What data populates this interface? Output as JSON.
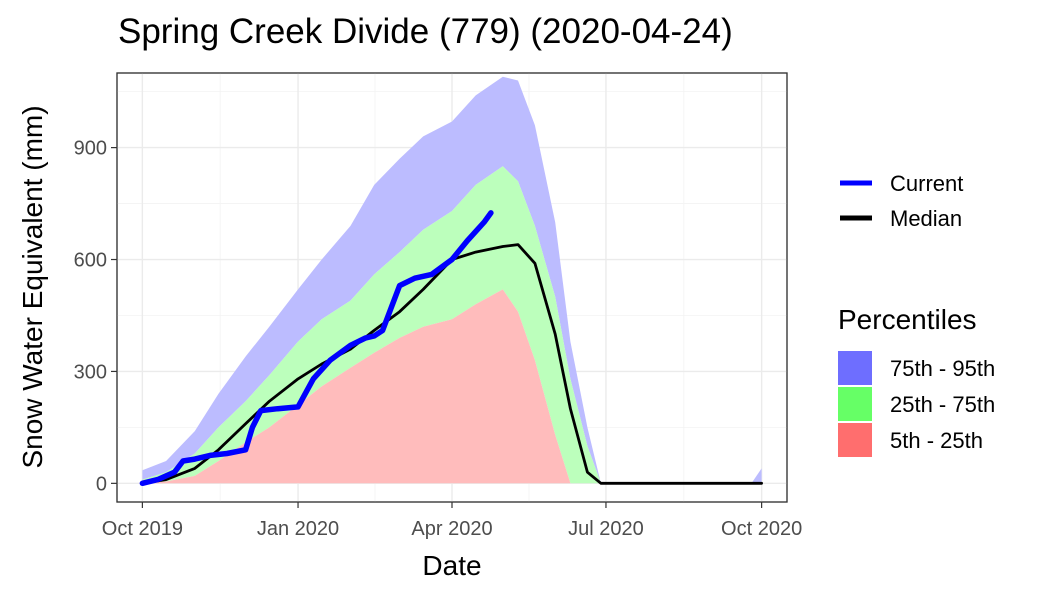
{
  "chart_data": {
    "type": "area",
    "title": "Spring Creek Divide (779) (2020-04-24)",
    "xlabel": "Date",
    "ylabel": "Snow Water Equivalent (mm)",
    "xlim": [
      "2019-09-16",
      "2020-10-16"
    ],
    "ylim": [
      -50,
      1100
    ],
    "x_ticks": [
      {
        "date": "2019-10-01",
        "label": "Oct 2019"
      },
      {
        "date": "2020-01-01",
        "label": "Jan 2020"
      },
      {
        "date": "2020-04-01",
        "label": "Apr 2020"
      },
      {
        "date": "2020-07-01",
        "label": "Jul 2020"
      },
      {
        "date": "2020-10-01",
        "label": "Oct 2020"
      }
    ],
    "y_ticks": [
      0,
      300,
      600,
      900
    ],
    "grid": true,
    "legend_position": "right",
    "legend": {
      "lines_title": "",
      "lines": [
        {
          "label": "Current",
          "color": "#0000ff"
        },
        {
          "label": "Median",
          "color": "#000000"
        }
      ],
      "bands_title": "Percentiles",
      "bands": [
        {
          "label": "75th - 95th",
          "color": "#6e6eff"
        },
        {
          "label": "25th - 75th",
          "color": "#66ff66"
        },
        {
          "label": "5th - 25th",
          "color": "#ff6e6e"
        }
      ]
    },
    "bands": {
      "p95_fill": "#bcbcff",
      "p75_fill": "#bcffbc",
      "p25_fill": "#ffbcbc",
      "dates": [
        "2019-10-01",
        "2019-10-15",
        "2019-11-01",
        "2019-11-15",
        "2019-12-01",
        "2019-12-15",
        "2020-01-01",
        "2020-01-15",
        "2020-02-01",
        "2020-02-15",
        "2020-03-01",
        "2020-03-15",
        "2020-04-01",
        "2020-04-15",
        "2020-05-01",
        "2020-05-10",
        "2020-05-20",
        "2020-06-01",
        "2020-06-10",
        "2020-06-20",
        "2020-06-28",
        "2020-07-15",
        "2020-09-25",
        "2020-10-01"
      ],
      "p95": [
        35,
        60,
        140,
        240,
        340,
        420,
        520,
        600,
        690,
        800,
        870,
        930,
        970,
        1040,
        1090,
        1080,
        960,
        700,
        380,
        150,
        0,
        0,
        0,
        40
      ],
      "p75": [
        10,
        30,
        80,
        150,
        220,
        290,
        380,
        440,
        490,
        560,
        620,
        680,
        730,
        800,
        850,
        810,
        690,
        500,
        280,
        100,
        0,
        0,
        0,
        0
      ],
      "p25": [
        0,
        5,
        20,
        60,
        110,
        150,
        210,
        260,
        310,
        350,
        390,
        420,
        440,
        480,
        520,
        460,
        330,
        130,
        0,
        0,
        0,
        0,
        0,
        0
      ],
      "p5": [
        0,
        0,
        0,
        0,
        0,
        0,
        0,
        0,
        0,
        0,
        0,
        0,
        0,
        0,
        0,
        0,
        0,
        0,
        0,
        0,
        0,
        0,
        0,
        0
      ]
    },
    "series": [
      {
        "name": "Median",
        "color": "#000000",
        "dates": [
          "2019-10-01",
          "2019-10-15",
          "2019-11-01",
          "2019-11-15",
          "2019-12-01",
          "2019-12-15",
          "2020-01-01",
          "2020-01-15",
          "2020-02-01",
          "2020-02-15",
          "2020-03-01",
          "2020-03-15",
          "2020-04-01",
          "2020-04-15",
          "2020-05-01",
          "2020-05-10",
          "2020-05-20",
          "2020-06-01",
          "2020-06-10",
          "2020-06-20",
          "2020-06-28",
          "2020-07-15",
          "2020-10-01"
        ],
        "values": [
          0,
          10,
          40,
          90,
          160,
          220,
          280,
          320,
          360,
          410,
          460,
          520,
          600,
          620,
          635,
          640,
          590,
          400,
          200,
          30,
          0,
          0,
          0
        ]
      },
      {
        "name": "Current",
        "color": "#0000ff",
        "dates": [
          "2019-10-01",
          "2019-10-10",
          "2019-10-20",
          "2019-10-25",
          "2019-11-01",
          "2019-11-10",
          "2019-11-20",
          "2019-12-01",
          "2019-12-05",
          "2019-12-10",
          "2019-12-20",
          "2020-01-01",
          "2020-01-10",
          "2020-01-20",
          "2020-02-01",
          "2020-02-10",
          "2020-02-15",
          "2020-02-20",
          "2020-02-25",
          "2020-03-01",
          "2020-03-10",
          "2020-03-20",
          "2020-04-01",
          "2020-04-10",
          "2020-04-20",
          "2020-04-24"
        ],
        "values": [
          0,
          10,
          30,
          60,
          65,
          75,
          80,
          90,
          150,
          195,
          200,
          205,
          280,
          330,
          370,
          390,
          395,
          410,
          470,
          530,
          550,
          560,
          600,
          650,
          700,
          725
        ]
      }
    ]
  }
}
